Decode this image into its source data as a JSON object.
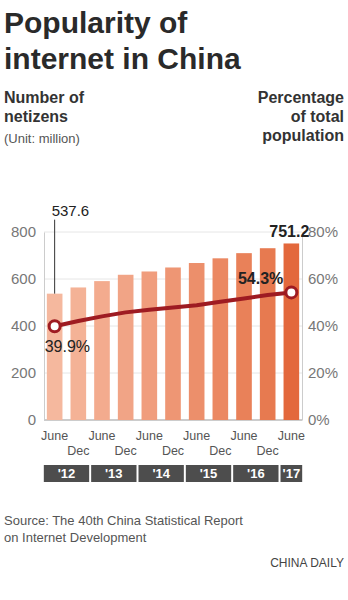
{
  "chart_data": {
    "type": "bar",
    "title": "Popularity of internet in China",
    "ylabel": "(Unit: million)",
    "categories": [
      "June",
      "Dec",
      "June",
      "Dec",
      "June",
      "Dec",
      "June",
      "Dec",
      "June",
      "Dec",
      "June"
    ],
    "category_groups": [
      "'12",
      "'12",
      "'13",
      "'13",
      "'14",
      "'14",
      "'15",
      "'15",
      "'16",
      "'16",
      "'17"
    ],
    "series": [
      {
        "name": "Number of netizens",
        "type": "bar",
        "colors": [
          "#f5b89e",
          "#f4b296",
          "#f3ab8e",
          "#f1a486",
          "#f09d7d",
          "#ee9674",
          "#ec8f6b",
          "#eb8862",
          "#e98159",
          "#e77a50",
          "#e3683c"
        ],
        "values": [
          537.6,
          564.0,
          591.0,
          618.0,
          632.0,
          649.0,
          668.0,
          688.0,
          710.0,
          731.0,
          751.2
        ],
        "value_labels": [
          "537.6",
          null,
          null,
          null,
          null,
          null,
          null,
          null,
          null,
          null,
          "751.2"
        ]
      },
      {
        "name": "Percentage of total population",
        "type": "line",
        "axis": "y2",
        "color": "#9e1b22",
        "marker": "circle",
        "values": [
          39.9,
          42.1,
          44.1,
          45.8,
          46.9,
          47.9,
          48.8,
          50.3,
          51.7,
          53.2,
          54.3
        ],
        "value_labels": [
          "39.9%",
          null,
          null,
          null,
          null,
          null,
          null,
          null,
          null,
          null,
          "54.3%"
        ]
      }
    ],
    "ylim": [
      0,
      800
    ],
    "yticks": [
      0,
      200,
      400,
      600,
      800
    ],
    "y2lim": [
      0,
      80
    ],
    "y2ticks": [
      {
        "value": 0,
        "label": "0%"
      },
      {
        "value": 20,
        "label": "20%"
      },
      {
        "value": 40,
        "label": "40%"
      },
      {
        "value": 60,
        "label": "60%"
      },
      {
        "value": 80,
        "label": "80%"
      }
    ],
    "grid": true,
    "data_labels": true,
    "source": "Source: The 40th China Statistical Report on Internet Development",
    "credit": "CHINA DAILY"
  }
}
